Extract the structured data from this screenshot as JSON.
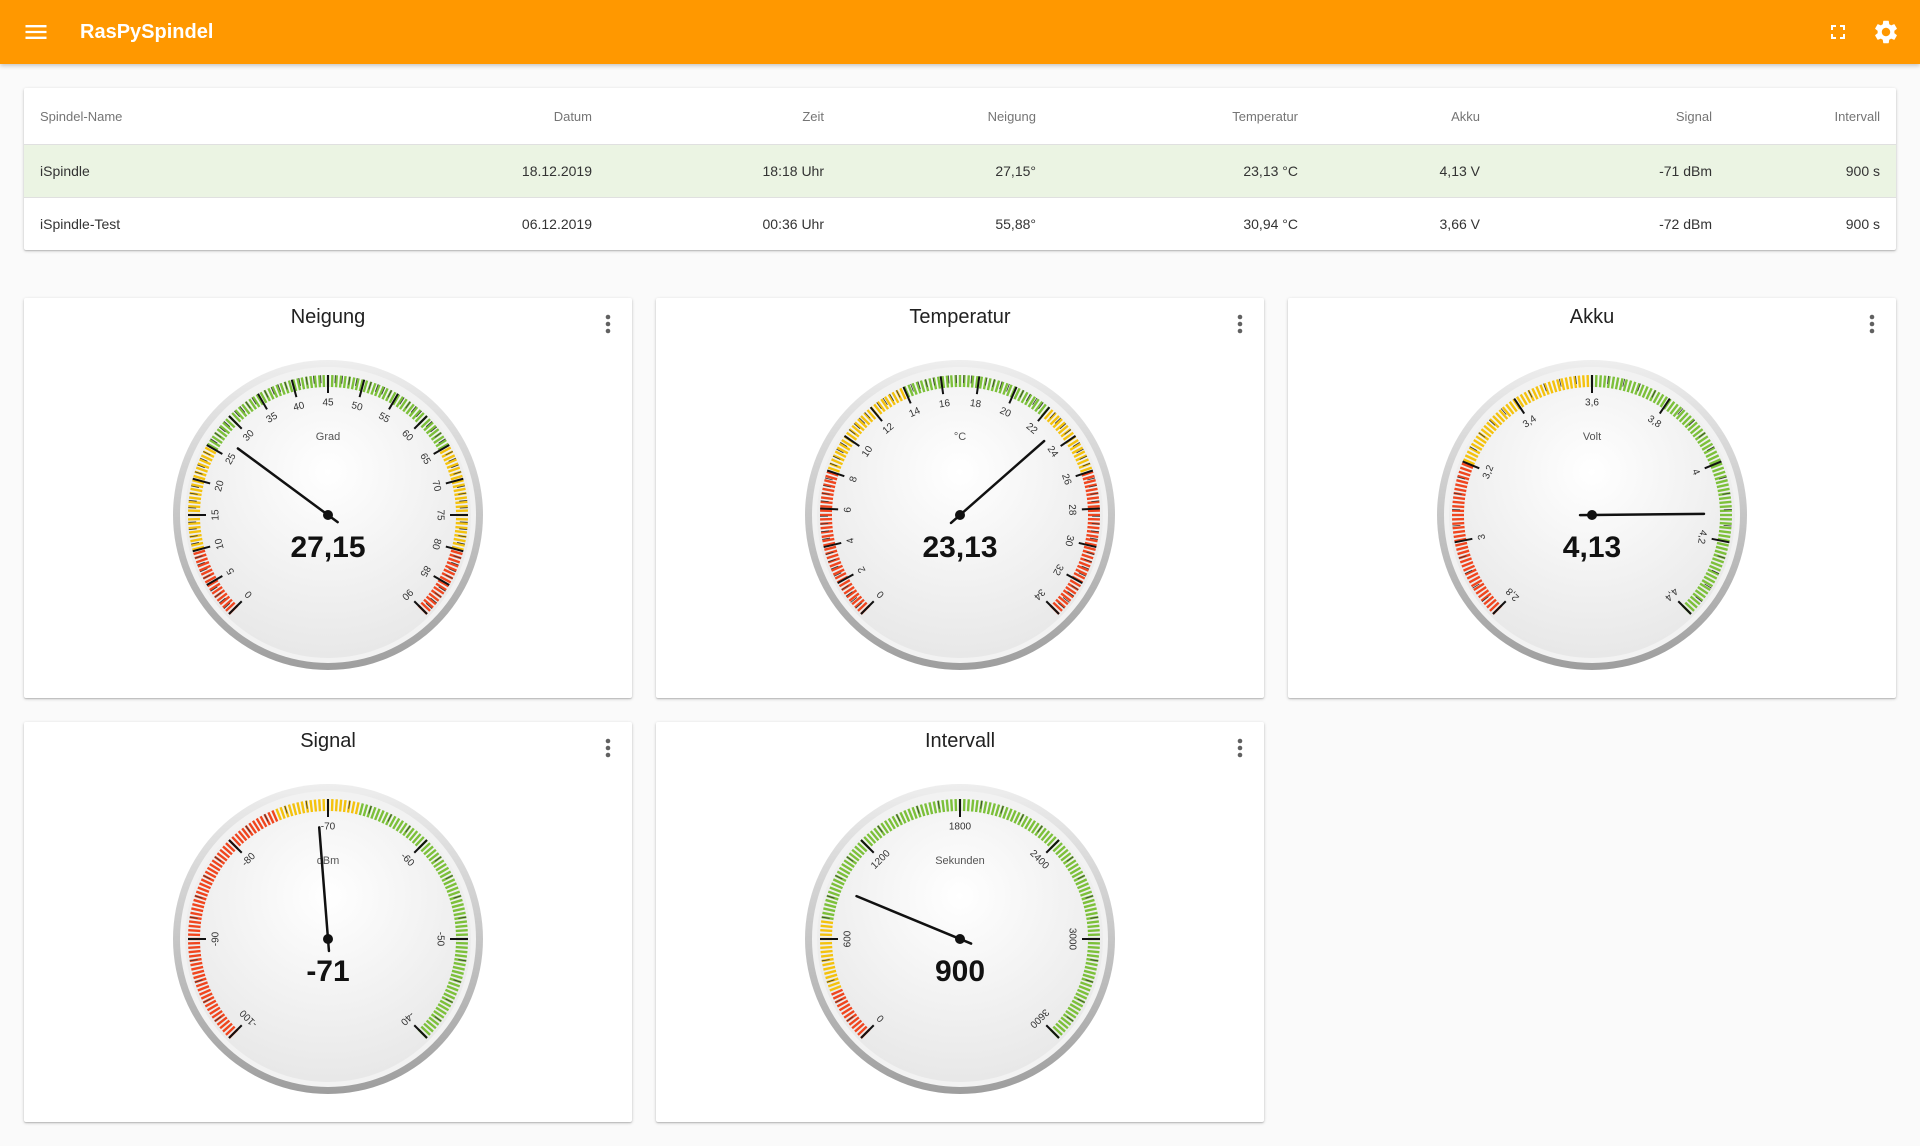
{
  "header": {
    "title": "RasPySpindel",
    "icons": [
      "menu-icon",
      "fullscreen-icon",
      "settings-icon"
    ]
  },
  "table": {
    "columns": [
      "Spindel-Name",
      "Datum",
      "Zeit",
      "Neigung",
      "Temperatur",
      "Akku",
      "Signal",
      "Intervall"
    ],
    "rows": [
      [
        "iSpindle",
        "18.12.2019",
        "18:18 Uhr",
        "27,15°",
        "23,13 °C",
        "4,13 V",
        "-71 dBm",
        "900 s"
      ],
      [
        "iSpindle-Test",
        "06.12.2019",
        "00:36 Uhr",
        "55,88°",
        "30,94 °C",
        "3,66 V",
        "-72 dBm",
        "900 s"
      ]
    ],
    "selected_row": 0
  },
  "colors": {
    "appbar": "#ff9800",
    "selected_row": "#ebf4e3",
    "gauge_red": "#f0451e",
    "gauge_yellow": "#f4c20d",
    "gauge_green": "#7cc03a"
  },
  "gauges": [
    {
      "title": "Neigung",
      "unit": "Grad",
      "min": 0,
      "max": 90,
      "value": 27.15,
      "display": "27,15",
      "tick_labels": [
        "0",
        "5",
        "10",
        "15",
        "20",
        "25",
        "30",
        "35",
        "40",
        "45",
        "50",
        "55",
        "60",
        "65",
        "70",
        "75",
        "80",
        "85",
        "90"
      ],
      "zones": [
        {
          "from": 0,
          "to": 10,
          "color": "red"
        },
        {
          "from": 10,
          "to": 25,
          "color": "yellow"
        },
        {
          "from": 25,
          "to": 65,
          "color": "green"
        },
        {
          "from": 65,
          "to": 80,
          "color": "yellow"
        },
        {
          "from": 80,
          "to": 90,
          "color": "red"
        }
      ]
    },
    {
      "title": "Temperatur",
      "unit": "°C",
      "min": 0,
      "max": 34,
      "value": 23.13,
      "display": "23,13",
      "tick_labels": [
        "0",
        "2",
        "4",
        "6",
        "8",
        "10",
        "12",
        "14",
        "16",
        "18",
        "20",
        "22",
        "24",
        "26",
        "28",
        "30",
        "32",
        "34"
      ],
      "zones": [
        {
          "from": 0,
          "to": 8,
          "color": "red"
        },
        {
          "from": 8,
          "to": 14,
          "color": "yellow"
        },
        {
          "from": 14,
          "to": 22,
          "color": "green"
        },
        {
          "from": 22,
          "to": 26,
          "color": "yellow"
        },
        {
          "from": 26,
          "to": 34,
          "color": "red"
        }
      ]
    },
    {
      "title": "Akku",
      "unit": "Volt",
      "min": 2.8,
      "max": 4.4,
      "value": 4.13,
      "display": "4,13",
      "tick_labels": [
        "2,8",
        "3",
        "3,2",
        "3,4",
        "3,6",
        "3,8",
        "4",
        "4,2",
        "4,4"
      ],
      "zones": [
        {
          "from": 2.8,
          "to": 3.2,
          "color": "red"
        },
        {
          "from": 3.2,
          "to": 3.6,
          "color": "yellow"
        },
        {
          "from": 3.6,
          "to": 4.4,
          "color": "green"
        }
      ]
    },
    {
      "title": "Signal",
      "unit": "dBm",
      "min": -100,
      "max": -40,
      "value": -71,
      "display": "-71",
      "tick_labels": [
        "-100",
        "-90",
        "-80",
        "-70",
        "-60",
        "-50",
        "-40"
      ],
      "zones": [
        {
          "from": -100,
          "to": -75,
          "color": "red"
        },
        {
          "from": -75,
          "to": -67,
          "color": "yellow"
        },
        {
          "from": -67,
          "to": -40,
          "color": "green"
        }
      ]
    },
    {
      "title": "Intervall",
      "unit": "Sekunden",
      "min": 0,
      "max": 3600,
      "value": 900,
      "display": "900",
      "tick_labels": [
        "0",
        "600",
        "1200",
        "1800",
        "2400",
        "3000",
        "3600"
      ],
      "zones": [
        {
          "from": 0,
          "to": 300,
          "color": "red"
        },
        {
          "from": 300,
          "to": 700,
          "color": "yellow"
        },
        {
          "from": 700,
          "to": 3600,
          "color": "green"
        }
      ]
    }
  ]
}
